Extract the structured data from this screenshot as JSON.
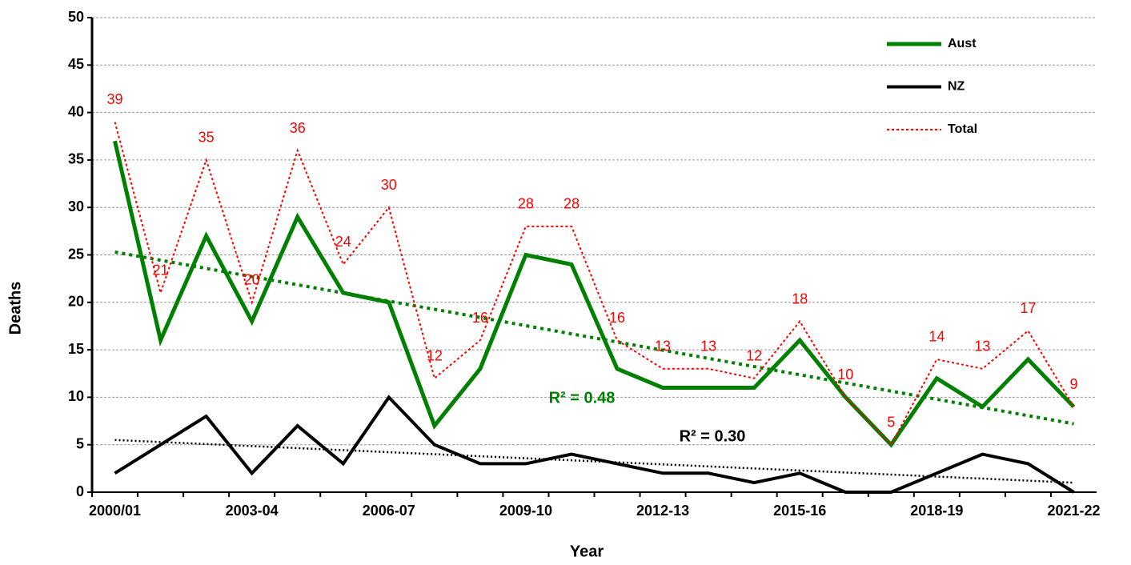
{
  "chart_data": {
    "type": "line",
    "x_label": "Year",
    "y_label": "Deaths",
    "categories": [
      "2000/01",
      null,
      null,
      "2003-04",
      null,
      null,
      "2006-07",
      null,
      null,
      "2009-10",
      null,
      null,
      "2012-13",
      null,
      null,
      "2015-16",
      null,
      null,
      "2018-19",
      null,
      null,
      "2021-22"
    ],
    "series": [
      {
        "name": "Aust",
        "color": "#008000",
        "width": 5,
        "style": "solid",
        "values": [
          37,
          16,
          27,
          18,
          29,
          21,
          20,
          7,
          13,
          25,
          24,
          13,
          11,
          11,
          11,
          16,
          10,
          5,
          12,
          9,
          14,
          9
        ]
      },
      {
        "name": "NZ",
        "color": "#000000",
        "width": 4,
        "style": "solid",
        "values": [
          2,
          5,
          8,
          2,
          7,
          3,
          10,
          5,
          3,
          3,
          4,
          3,
          2,
          2,
          1,
          2,
          0,
          0,
          2,
          4,
          3,
          0
        ]
      },
      {
        "name": "Total",
        "color": "#ff0000",
        "width": 2,
        "style": "dotted",
        "show_value_labels": true,
        "values": [
          39,
          21,
          35,
          20,
          36,
          24,
          30,
          12,
          16,
          28,
          28,
          16,
          13,
          13,
          12,
          18,
          10,
          5,
          14,
          13,
          17,
          9
        ]
      }
    ],
    "trendlines": [
      {
        "color": "#008000",
        "start": 25.3,
        "end": 7.2,
        "label": "R² = 0.48"
      },
      {
        "color": "#000000",
        "start": 5.5,
        "end": 1.0,
        "label": "R² = 0.30"
      }
    ],
    "ylim": [
      0,
      50
    ],
    "yticks": [
      0,
      5,
      10,
      15,
      20,
      25,
      30,
      35,
      40,
      45,
      50
    ],
    "grid": true,
    "legend": "top-right"
  }
}
